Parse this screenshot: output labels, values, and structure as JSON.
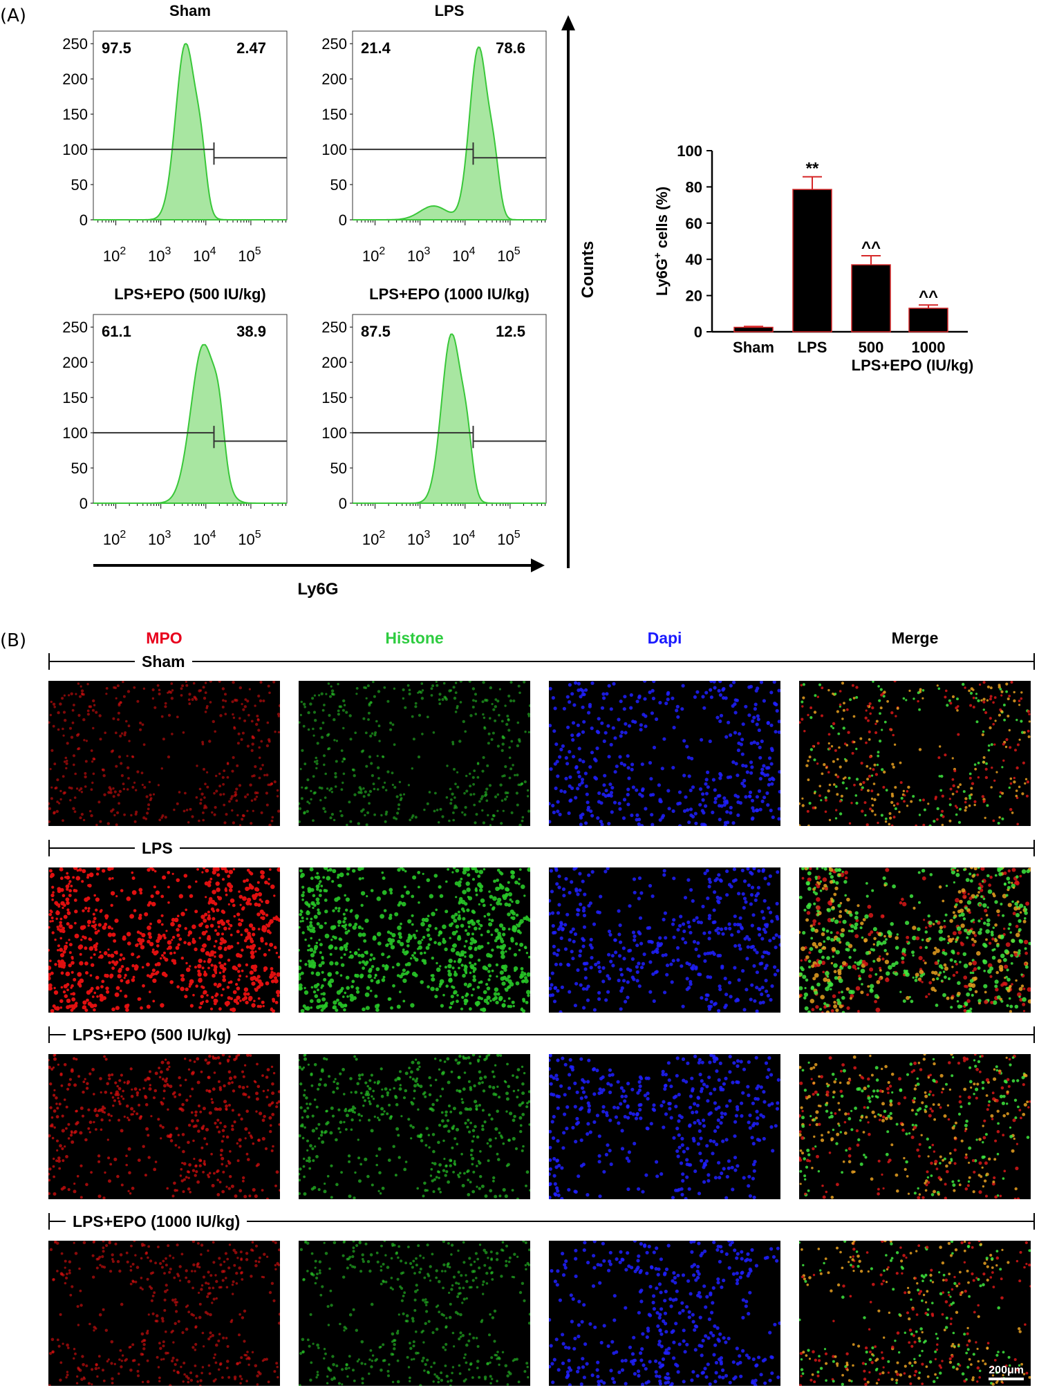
{
  "panelA": {
    "label": "(A)",
    "histograms": [
      {
        "title": "Sham",
        "left_pct": "97.5",
        "right_pct": "2.47",
        "peak_log": 3.55,
        "peak_count": 250,
        "spread": 0.22,
        "tail": 0.0
      },
      {
        "title": "LPS",
        "left_pct": "21.4",
        "right_pct": "78.6",
        "peak_log": 4.3,
        "peak_count": 245,
        "spread": 0.2,
        "tail": 0.08
      },
      {
        "title": "LPS+EPO (500 IU/kg)",
        "left_pct": "61.1",
        "right_pct": "38.9",
        "peak_log": 3.95,
        "peak_count": 225,
        "spread": 0.28,
        "tail": 0.0
      },
      {
        "title": "LPS+EPO (1000 IU/kg)",
        "left_pct": "87.5",
        "right_pct": "12.5",
        "peak_log": 3.7,
        "peak_count": 240,
        "spread": 0.22,
        "tail": 0.0
      }
    ],
    "y_ticks": [
      "250",
      "200",
      "150",
      "100",
      "50",
      "0"
    ],
    "x_tick_exponents": [
      "2",
      "3",
      "4",
      "5"
    ],
    "x_tick_base": "10",
    "x_axis_label": "Ly6G",
    "y_axis_label": "Counts"
  },
  "chart_data": [
    {
      "type": "area",
      "panels": [
        {
          "title": "Sham",
          "gate_percent": {
            "left": 97.5,
            "right": 2.47
          }
        },
        {
          "title": "LPS",
          "gate_percent": {
            "left": 21.4,
            "right": 78.6
          }
        },
        {
          "title": "LPS+EPO (500 IU/kg)",
          "gate_percent": {
            "left": 61.1,
            "right": 38.9
          }
        },
        {
          "title": "LPS+EPO (1000 IU/kg)",
          "gate_percent": {
            "left": 87.5,
            "right": 12.5
          }
        }
      ],
      "xlabel": "Ly6G",
      "ylabel": "Counts",
      "ylim": [
        0,
        260
      ],
      "x_scale": "log"
    },
    {
      "type": "bar",
      "categories": [
        "Sham",
        "LPS",
        "500",
        "1000"
      ],
      "group_label": "LPS+EPO (IU/kg)",
      "values": [
        2.47,
        78.6,
        37.0,
        13.0
      ],
      "errors": [
        0.5,
        7.0,
        5.0,
        1.8
      ],
      "significance": [
        "",
        "**",
        "^^",
        "^^"
      ],
      "ylabel_main": "Ly6G",
      "ylabel_sup": "+",
      "ylabel_rest": " cells (%)",
      "ylim": [
        0,
        100
      ],
      "y_ticks": [
        "0",
        "20",
        "40",
        "60",
        "80",
        "100"
      ],
      "bar_color": "#000000",
      "error_color": "#d62728"
    }
  ],
  "panelB": {
    "label": "(B)",
    "stains": [
      {
        "name": "MPO",
        "color": "#e8001c"
      },
      {
        "name": "Histone",
        "color": "#2ecc40"
      },
      {
        "name": "Dapi",
        "color": "#1a1aff"
      },
      {
        "name": "Merge",
        "color": "#000000"
      }
    ],
    "rows": [
      {
        "label": "Sham",
        "intensity": 0.35
      },
      {
        "label": "LPS",
        "intensity": 1.0
      },
      {
        "label": "LPS+EPO (500 IU/kg)",
        "intensity": 0.55
      },
      {
        "label": "LPS+EPO (1000 IU/kg)",
        "intensity": 0.4
      }
    ],
    "scale_bar": "200μm"
  },
  "colors": {
    "histogram_fill": "#a8e6a1",
    "histogram_line": "#39c739"
  }
}
